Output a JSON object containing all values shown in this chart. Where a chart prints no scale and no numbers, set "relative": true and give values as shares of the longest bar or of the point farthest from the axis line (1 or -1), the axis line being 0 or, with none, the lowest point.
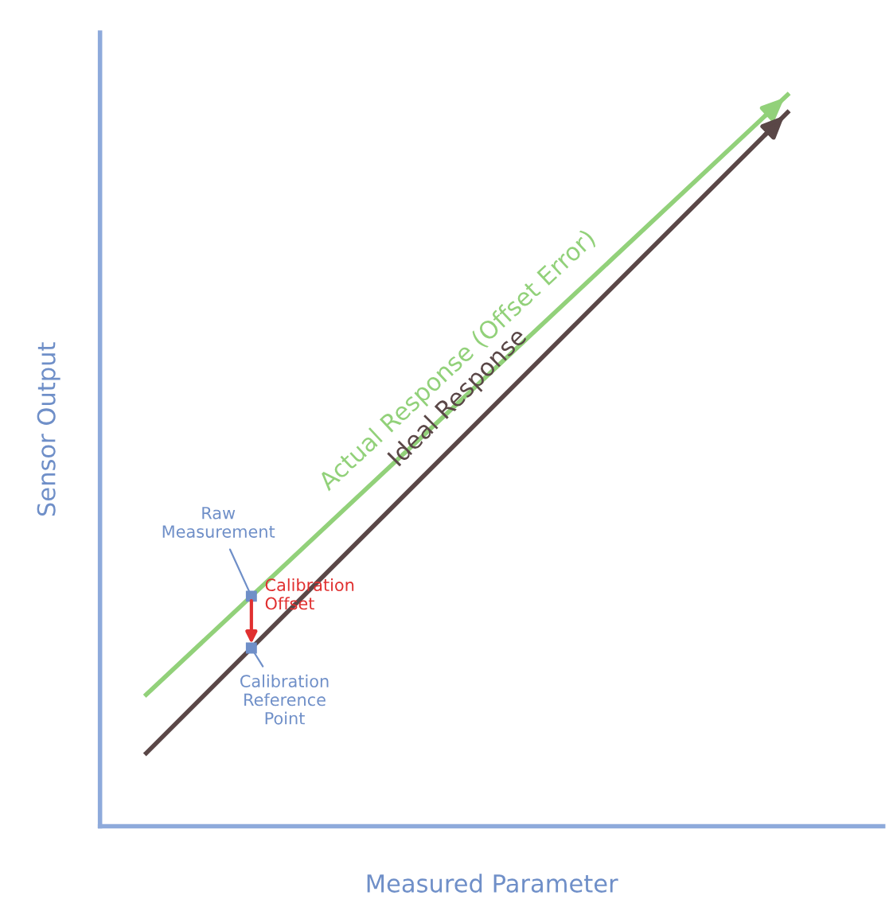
{
  "chart_data": {
    "type": "line",
    "relative": true,
    "xlabel": "Measured Parameter",
    "ylabel": "Sensor Output",
    "line_style": "solid",
    "categories": [
      null,
      null
    ],
    "series": [
      {
        "name": "Actual Response (Offset Error)",
        "color": "#92d17a",
        "values": [
          0.18,
          1
        ]
      },
      {
        "name": "Ideal Response",
        "color": "#5a4747",
        "values": [
          0.1,
          0.976
        ]
      }
    ],
    "annotations": [
      "Raw Measurement",
      "Calibration Offset",
      "Calibration Reference Point"
    ]
  }
}
